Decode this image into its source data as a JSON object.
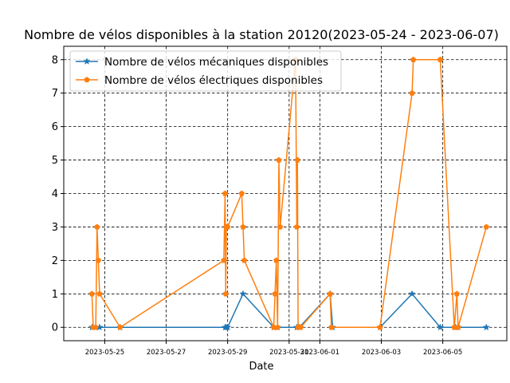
{
  "chart_data": {
    "type": "line",
    "title": "Nombre de vélos disponibles à la station 20120(2023-05-24 - 2023-06-07)",
    "xlabel": "Date",
    "ylabel": "",
    "x_type": "datetime",
    "xlim": [
      "2023-05-23T16:00",
      "2023-06-07T02:00"
    ],
    "ylim": [
      -0.4,
      8.4
    ],
    "xticks": [
      "2023-05-25",
      "2023-05-27",
      "2023-05-29",
      "2023-05-31",
      "2023-06-01",
      "2023-06-03",
      "2023-06-05"
    ],
    "yticks": [
      0,
      1,
      2,
      3,
      4,
      5,
      6,
      7,
      8
    ],
    "grid": true,
    "grid_style": "dashed",
    "legend_position": "upper-left",
    "series": [
      {
        "name": "Nombre de vélos mécaniques disponibles",
        "color": "#1f77b4",
        "marker": "star",
        "points": [
          [
            "2023-05-24T14:00",
            0
          ],
          [
            "2023-05-24T17:00",
            0
          ],
          [
            "2023-05-24T20:00",
            0
          ],
          [
            "2023-05-25T12:00",
            0
          ],
          [
            "2023-05-28T22:00",
            0
          ],
          [
            "2023-05-28T23:00",
            0
          ],
          [
            "2023-05-29T00:00",
            0
          ],
          [
            "2023-05-29T12:00",
            1
          ],
          [
            "2023-05-30T12:00",
            0
          ],
          [
            "2023-05-30T15:00",
            0
          ],
          [
            "2023-05-31T06:00",
            0
          ],
          [
            "2023-05-31T08:00",
            0
          ],
          [
            "2023-06-01T08:00",
            1
          ],
          [
            "2023-06-01T10:00",
            0
          ],
          [
            "2023-06-02T23:00",
            0
          ],
          [
            "2023-06-04T00:00",
            1
          ],
          [
            "2023-06-04T22:00",
            0
          ],
          [
            "2023-06-05T10:00",
            0
          ],
          [
            "2023-06-05T12:00",
            0
          ],
          [
            "2023-06-06T10:00",
            0
          ]
        ]
      },
      {
        "name": "Nombre de vélos électriques disponibles",
        "color": "#ff7f0e",
        "marker": "pentagon",
        "points": [
          [
            "2023-05-24T14:00",
            1
          ],
          [
            "2023-05-24T15:00",
            0
          ],
          [
            "2023-05-24T17:00",
            0
          ],
          [
            "2023-05-24T18:00",
            3
          ],
          [
            "2023-05-24T19:00",
            2
          ],
          [
            "2023-05-24T20:00",
            1
          ],
          [
            "2023-05-25T12:00",
            0
          ],
          [
            "2023-05-28T21:00",
            2
          ],
          [
            "2023-05-28T22:00",
            4
          ],
          [
            "2023-05-28T22:30",
            1
          ],
          [
            "2023-05-28T23:00",
            3
          ],
          [
            "2023-05-29T00:00",
            3
          ],
          [
            "2023-05-29T11:00",
            4
          ],
          [
            "2023-05-29T12:00",
            3
          ],
          [
            "2023-05-29T13:00",
            2
          ],
          [
            "2023-05-30T12:00",
            0
          ],
          [
            "2023-05-30T13:00",
            1
          ],
          [
            "2023-05-30T14:00",
            2
          ],
          [
            "2023-05-30T15:00",
            0
          ],
          [
            "2023-05-30T16:00",
            5
          ],
          [
            "2023-05-30T17:00",
            3
          ],
          [
            "2023-05-31T05:00",
            8
          ],
          [
            "2023-05-31T06:00",
            3
          ],
          [
            "2023-05-31T06:30",
            5
          ],
          [
            "2023-05-31T07:00",
            0
          ],
          [
            "2023-05-31T09:00",
            0
          ],
          [
            "2023-06-01T08:00",
            1
          ],
          [
            "2023-06-01T09:00",
            0
          ],
          [
            "2023-06-02T23:00",
            0
          ],
          [
            "2023-06-04T00:00",
            7
          ],
          [
            "2023-06-04T01:00",
            8
          ],
          [
            "2023-06-04T22:00",
            8
          ],
          [
            "2023-06-05T09:00",
            0
          ],
          [
            "2023-06-05T11:00",
            1
          ],
          [
            "2023-06-05T12:00",
            0
          ],
          [
            "2023-06-06T10:00",
            3
          ]
        ]
      }
    ]
  }
}
